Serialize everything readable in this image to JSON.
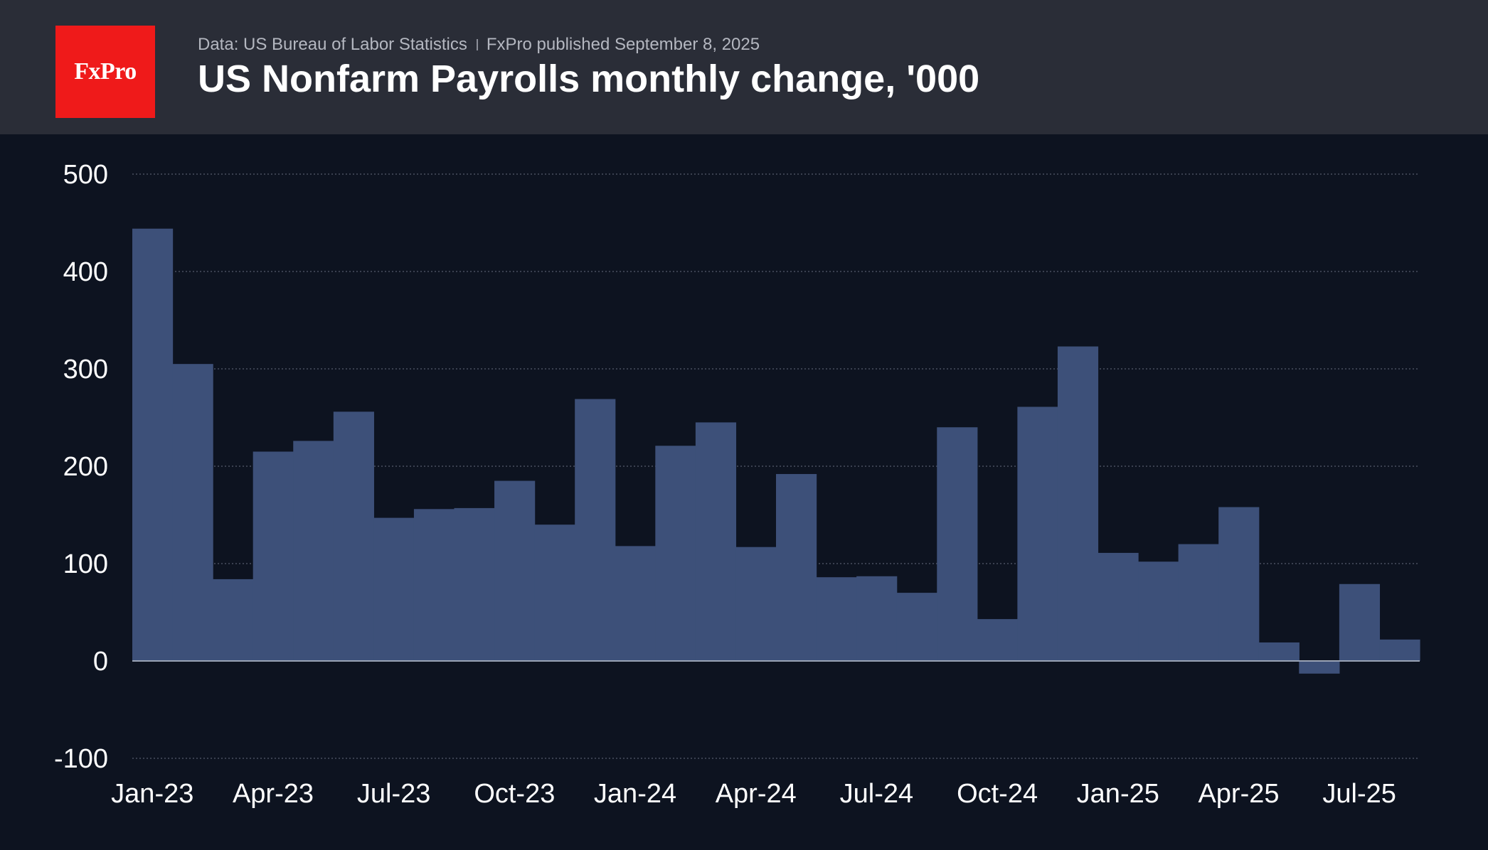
{
  "header": {
    "logo_text": "FxPro",
    "source": "Data: US Bureau of Labor Statistics",
    "publisher": "FxPro published September 8, 2025",
    "title": "US Nonfarm Payrolls monthly change, '000"
  },
  "colors": {
    "header_bg": "#2a2d37",
    "plot_bg": "#0d1320",
    "bar_fill": "#3d5079",
    "logo_bg": "#ef1a1a",
    "grid": "#4a5060",
    "zero_line": "#9aa3b5",
    "text": "#ffffff"
  },
  "chart_data": {
    "type": "bar",
    "style": "step",
    "title": "US Nonfarm Payrolls monthly change, '000",
    "xlabel": "",
    "ylabel": "",
    "ylim": [
      -100,
      500
    ],
    "yticks": [
      500,
      400,
      300,
      200,
      100,
      0,
      -100
    ],
    "grid": true,
    "legend": "none",
    "xtick_labels": [
      "Jan-23",
      "Apr-23",
      "Jul-23",
      "Oct-23",
      "Jan-24",
      "Apr-24",
      "Jul-24",
      "Oct-24",
      "Jan-25",
      "Apr-25",
      "Jul-25"
    ],
    "categories": [
      "Jan-23",
      "Feb-23",
      "Mar-23",
      "Apr-23",
      "May-23",
      "Jun-23",
      "Jul-23",
      "Aug-23",
      "Sep-23",
      "Oct-23",
      "Nov-23",
      "Dec-23",
      "Jan-24",
      "Feb-24",
      "Mar-24",
      "Apr-24",
      "May-24",
      "Jun-24",
      "Jul-24",
      "Aug-24",
      "Sep-24",
      "Oct-24",
      "Nov-24",
      "Dec-24",
      "Jan-25",
      "Feb-25",
      "Mar-25",
      "Apr-25",
      "May-25",
      "Jun-25",
      "Jul-25",
      "Aug-25"
    ],
    "values": [
      444,
      305,
      84,
      215,
      226,
      256,
      147,
      156,
      157,
      185,
      140,
      269,
      118,
      221,
      245,
      117,
      192,
      86,
      87,
      70,
      240,
      43,
      261,
      323,
      111,
      102,
      120,
      158,
      19,
      -13,
      79,
      22
    ]
  }
}
